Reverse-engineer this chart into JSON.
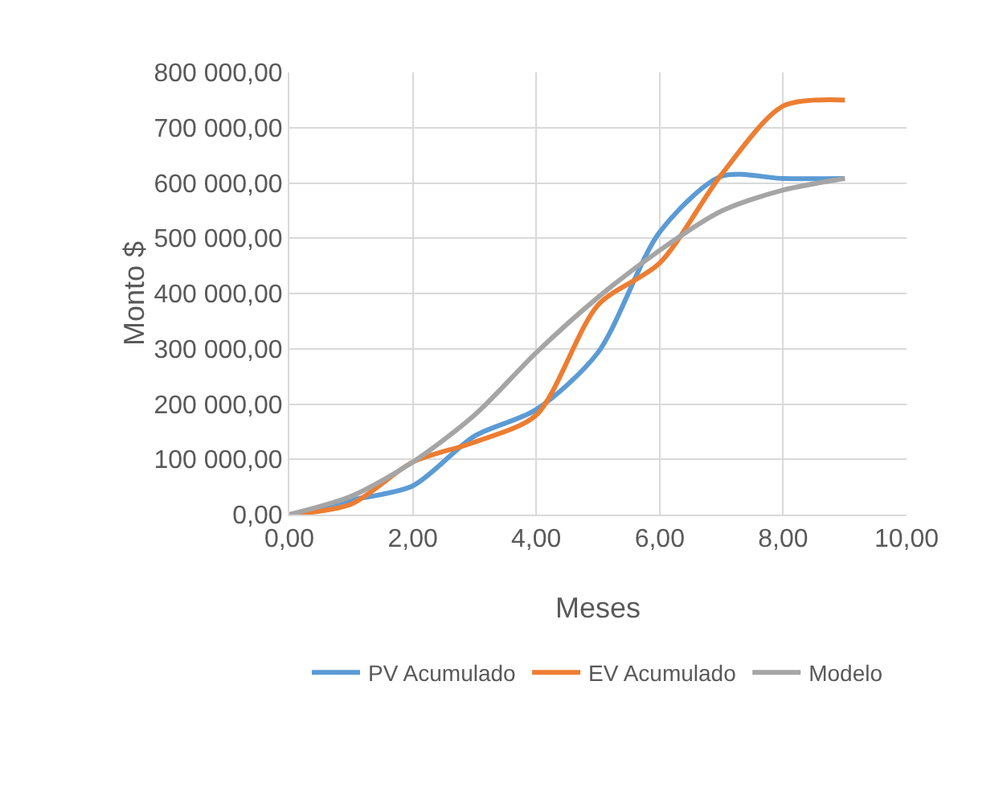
{
  "chart_data": {
    "type": "line",
    "xlabel": "Meses",
    "ylabel": "Monto $",
    "x": [
      0,
      1,
      2,
      3,
      4,
      5,
      6,
      7,
      8,
      9
    ],
    "series": [
      {
        "name": "PV Acumulado",
        "color": "#5b9bd5",
        "values": [
          0,
          26000,
          52000,
          142000,
          190000,
          293000,
          511000,
          612000,
          608000,
          608000
        ]
      },
      {
        "name": "EV Acumulado",
        "color": "#ed7d31",
        "values": [
          0,
          19000,
          95000,
          131000,
          180000,
          379000,
          455000,
          615000,
          739000,
          750000
        ]
      },
      {
        "name": "Modelo",
        "color": "#a5a5a5",
        "values": [
          0,
          33000,
          95000,
          180000,
          293000,
          393000,
          478000,
          549000,
          587000,
          608000
        ]
      }
    ],
    "xlim": [
      0,
      10
    ],
    "xticks": [
      {
        "value": 0,
        "label": "0,00"
      },
      {
        "value": 2,
        "label": "2,00"
      },
      {
        "value": 4,
        "label": "4,00"
      },
      {
        "value": 6,
        "label": "6,00"
      },
      {
        "value": 8,
        "label": "8,00"
      },
      {
        "value": 10,
        "label": "10,00"
      }
    ],
    "ylim": [
      0,
      800000
    ],
    "yticks": [
      {
        "value": 0,
        "label": "0,00"
      },
      {
        "value": 100000,
        "label": "100 000,00"
      },
      {
        "value": 200000,
        "label": "200 000,00"
      },
      {
        "value": 300000,
        "label": "300 000,00"
      },
      {
        "value": 400000,
        "label": "400 000,00"
      },
      {
        "value": 500000,
        "label": "500 000,00"
      },
      {
        "value": 600000,
        "label": "600 000,00"
      },
      {
        "value": 700000,
        "label": "700 000,00"
      },
      {
        "value": 800000,
        "label": "800 000,00"
      }
    ],
    "grid": true,
    "legend": "bottom",
    "marker": "none",
    "line_style": "solid"
  }
}
